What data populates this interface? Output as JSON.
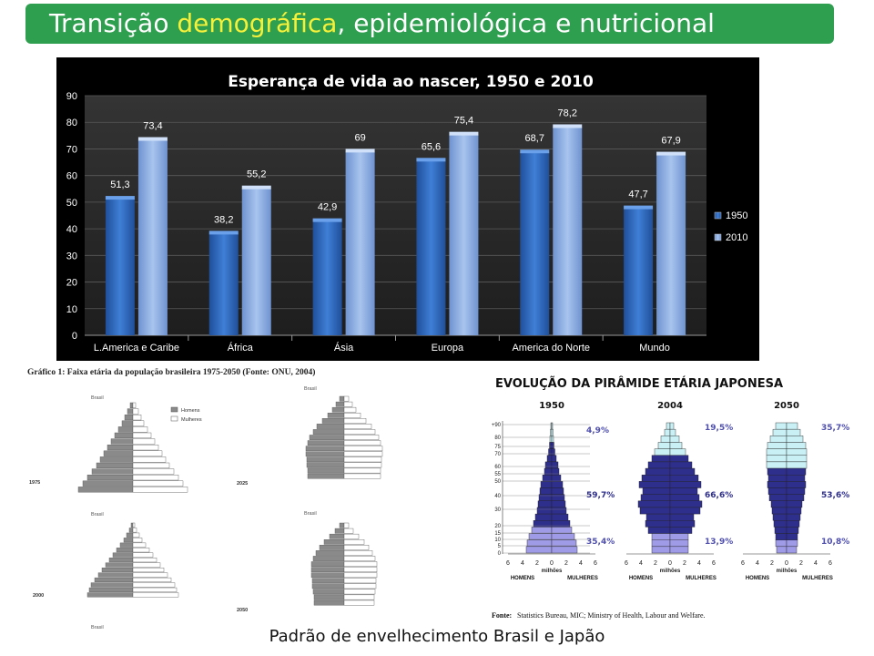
{
  "slide": {
    "title_part1": "Transição ",
    "title_highlight": "demográfica",
    "title_part2": ", epidemiológica e nutricional",
    "caption": "Padrão de envelhecimento Brasil  e Japão",
    "colors": {
      "title_bg": "#2e9e4f",
      "title_text": "#ffffff",
      "title_highlight": "#f5f03a"
    }
  },
  "chart_data": [
    {
      "type": "bar",
      "title": "Esperança de vida ao nascer, 1950 e 2010",
      "categories": [
        "L.America e Caribe",
        "África",
        "Ásia",
        "Europa",
        "America do Norte",
        "Mundo"
      ],
      "series": [
        {
          "name": "1950",
          "values": [
            51.3,
            38.2,
            42.9,
            65.6,
            68.7,
            47.7
          ],
          "labels": [
            "51,3",
            "38,2",
            "42,9",
            "65,6",
            "68,7",
            "47,7"
          ],
          "color": "#2f6fc4"
        },
        {
          "name": "2010",
          "values": [
            73.4,
            55.2,
            69,
            75.4,
            78.2,
            67.9
          ],
          "labels": [
            "73,4",
            "55,2",
            "69",
            "75,4",
            "78,2",
            "67,9"
          ],
          "color": "#8fb0e4"
        }
      ],
      "ylim": [
        0,
        90
      ],
      "yticks": [
        0,
        10,
        20,
        30,
        40,
        50,
        60,
        70,
        80,
        90
      ],
      "grid": true,
      "legend": "right",
      "background": "#000000"
    },
    {
      "type": "bar",
      "title": "Gráfico 1: Faixa etária da população brasileira 1975-2050 (Fonte: ONU, 2004)",
      "panel_label": "Brasil",
      "legend": [
        "Homens",
        "Mulheres"
      ],
      "years": [
        "1975",
        "2025",
        "2000",
        "2050"
      ],
      "colors": {
        "homens": "#8a8a8a",
        "mulheres": "#ffffff"
      }
    },
    {
      "type": "bar",
      "title": "EVOLUÇÃO DA PIRÂMIDE ETÁRIA JAPONESA",
      "years": [
        "1950",
        "2004",
        "2050"
      ],
      "age_labels": [
        "+90",
        "80",
        "75",
        "70",
        "60",
        "55",
        "50",
        "40",
        "30",
        "20",
        "15",
        "10",
        "5",
        "0"
      ],
      "x_ticks": [
        "6",
        "4",
        "2",
        "0",
        "2",
        "4",
        "6"
      ],
      "xlabel": "milhões",
      "side_labels": [
        "HOMENS",
        "MULHERES"
      ],
      "shares": [
        {
          "year": "1950",
          "old": "4,9%",
          "working": "59,7%",
          "young": "35,4%"
        },
        {
          "year": "2004",
          "old": "19,5%",
          "working": "66,6%",
          "young": "13,9%"
        },
        {
          "year": "2050",
          "old": "35,7%",
          "working": "53,6%",
          "young": "10,8%"
        }
      ],
      "source_label": "Fonte:",
      "source_text": "Statistics Bureau, MIC;  Ministry of Health, Labour and Welfare.",
      "colors": {
        "old": "#c9f0f5",
        "working": "#2e2e8c",
        "young": "#9f9be6",
        "annotation": "#4f4fb0"
      }
    }
  ]
}
